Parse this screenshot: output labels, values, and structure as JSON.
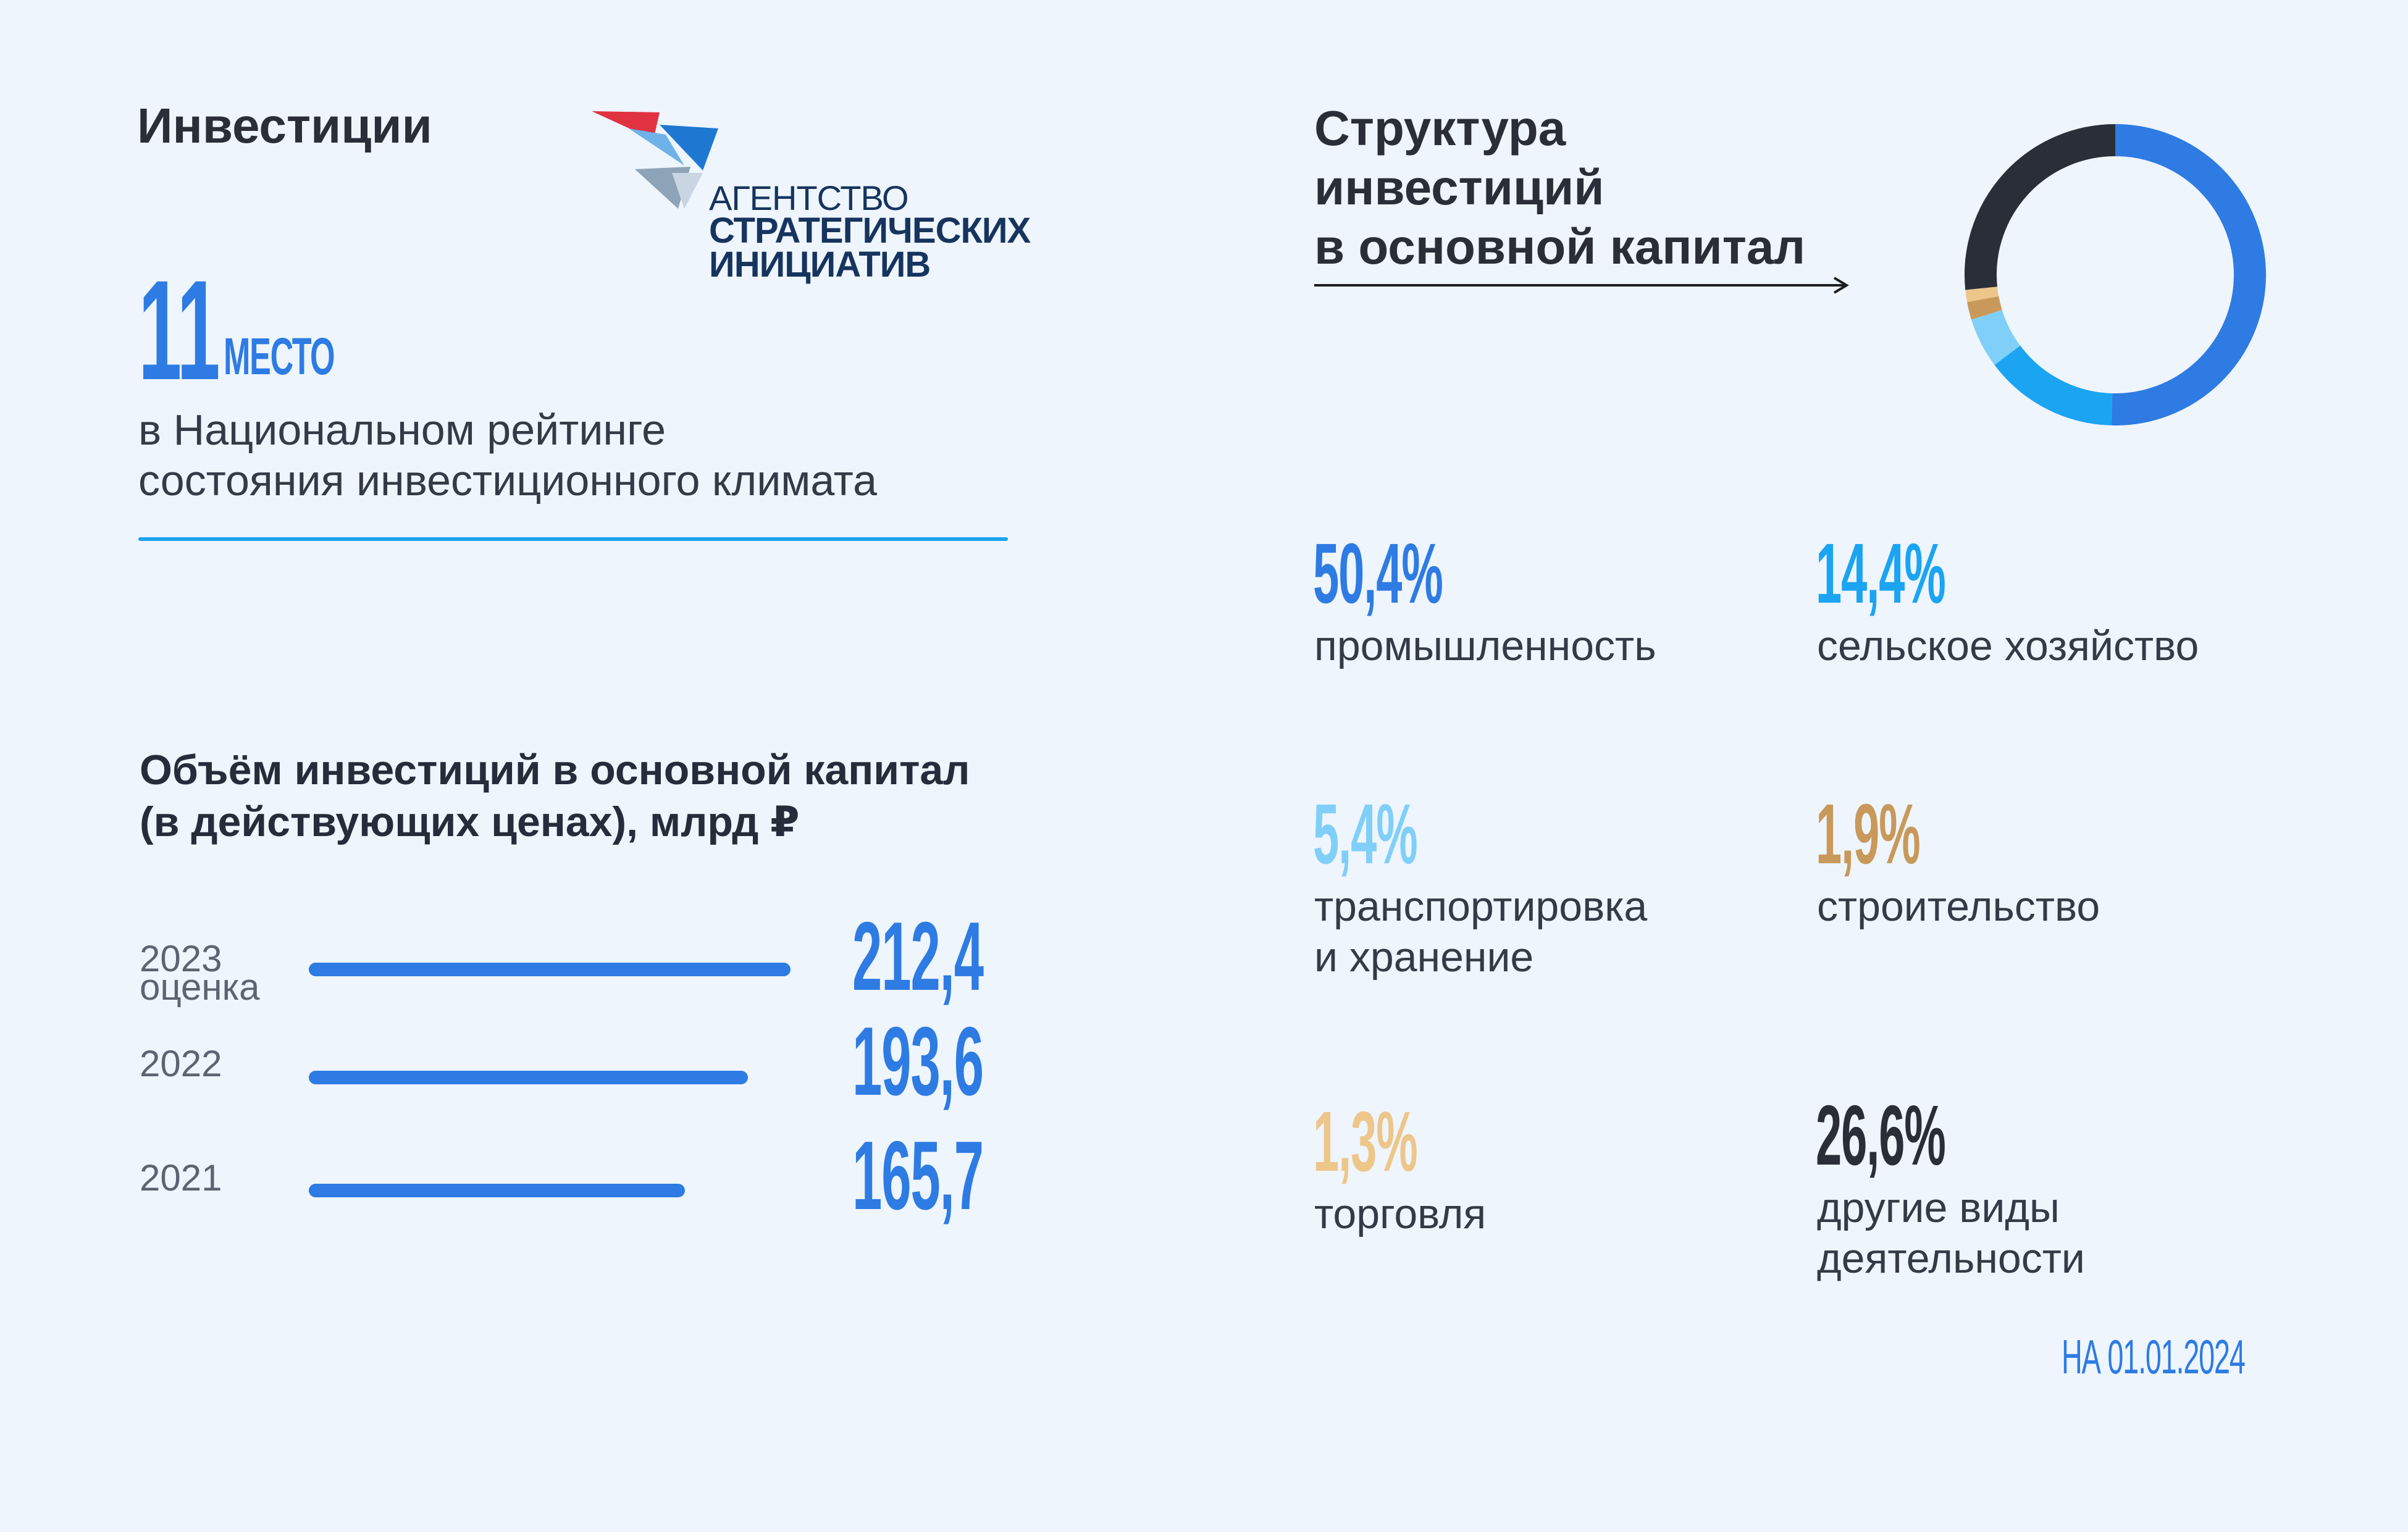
{
  "investments_heading": "Инвестиции",
  "logo": {
    "line1": "АГЕНТСТВО",
    "line2": "СТРАТЕГИЧЕСКИХ",
    "line3": "ИНИЦИАТИВ",
    "colors": {
      "red": "#E0323F",
      "blue": "#1E78D2",
      "gray": "#8FA3B8",
      "navy": "#16345E"
    }
  },
  "rank": {
    "number": "11",
    "unit": "МЕСТО",
    "description_line1": "в Национальном рейтинге",
    "description_line2": "состояния инвестиционного климата"
  },
  "volume": {
    "title_line1": "Объём инвестиций в основной капитал",
    "title_line2": "(в действующих ценах), млрд ₽"
  },
  "structure": {
    "title_line1": "Структура",
    "title_line2": "инвестиций",
    "title_line3": "в основной капитал"
  },
  "date_note": "НА 01.01.2024",
  "chart_data": [
    {
      "type": "bar",
      "orientation": "horizontal",
      "title": "Объём инвестиций в основной капитал (в действующих ценах), млрд ₽",
      "categories": [
        "2023 оценка",
        "2022",
        "2021"
      ],
      "category_lines": [
        [
          "2023",
          "оценка"
        ],
        [
          "2022"
        ],
        [
          "2021"
        ]
      ],
      "values": [
        212.4,
        193.6,
        165.7
      ],
      "value_labels": [
        "212,4",
        "193,6",
        "165,7"
      ],
      "bar_color": "#2E7BE3",
      "label_color": "#2E7BE3"
    },
    {
      "type": "pie",
      "variant": "donut",
      "title": "Структура инвестиций в основной капитал",
      "slices": [
        {
          "label": "промышленность",
          "value": 50.4,
          "value_label": "50,4%",
          "color": "#2E7BE3"
        },
        {
          "label": "сельское хозяйство",
          "value": 14.4,
          "value_label": "14,4%",
          "color": "#1BA4F2"
        },
        {
          "label": "транспортировка и хранение",
          "label_lines": [
            "транспортировка",
            "и хранение"
          ],
          "value": 5.4,
          "value_label": "5,4%",
          "color": "#80CFF8"
        },
        {
          "label": "строительство",
          "value": 1.9,
          "value_label": "1,9%",
          "color": "#C8995A"
        },
        {
          "label": "торговля",
          "value": 1.3,
          "value_label": "1,3%",
          "color": "#EDC68A"
        },
        {
          "label": "другие виды деятельности",
          "label_lines": [
            "другие виды",
            "деятельности"
          ],
          "value": 26.6,
          "value_label": "26,6%",
          "color": "#2A2E38"
        }
      ]
    }
  ]
}
